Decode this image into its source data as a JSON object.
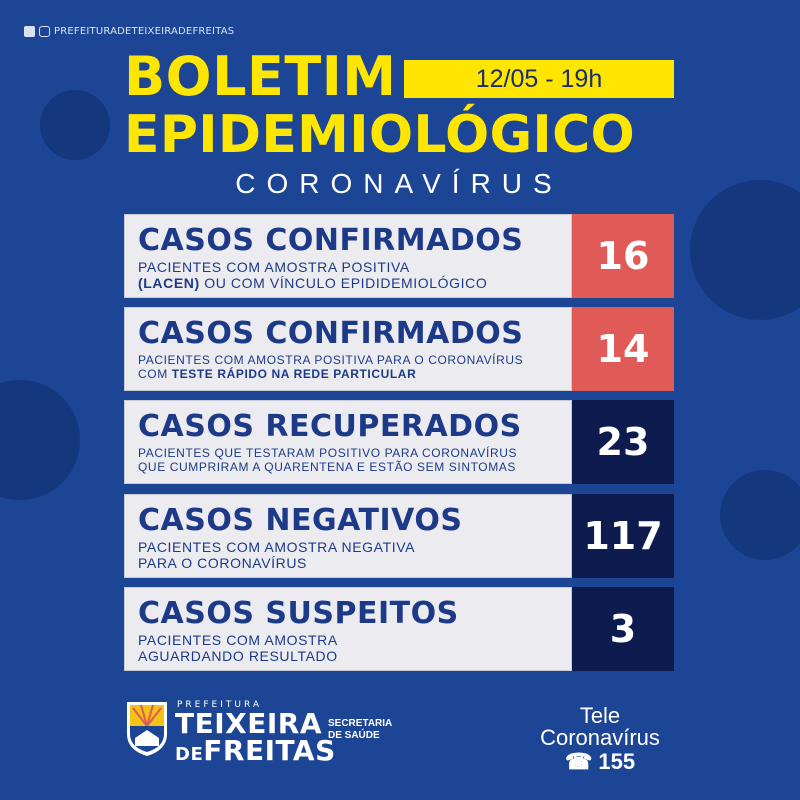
{
  "social": {
    "handle": "PREFEITURADETEIXEIRADEFREITAS",
    "icons": [
      "facebook-icon",
      "instagram-icon"
    ]
  },
  "header": {
    "title_line1": "BOLETIM",
    "title_line2": "EPIDEMIOLÓGICO",
    "date": "12/05 - 19h",
    "subtitle": "CORONAVÍRUS"
  },
  "colors": {
    "background": "#1c4596",
    "accent": "#ffe600",
    "red": "#e05a57",
    "navy": "#0e1b4f",
    "panel": "#ececf0",
    "text": "#1c3a88"
  },
  "stats": [
    {
      "title": "CASOS CONFIRMADOS",
      "line1": "PACIENTES COM AMOSTRA POSITIVA",
      "line2_bold": "(LACEN)",
      "line2_rest": " OU COM VÍNCULO EPIDIDEMIOLÓGICO",
      "value": "16"
    },
    {
      "title": "CASOS CONFIRMADOS",
      "line1": "PACIENTES COM AMOSTRA POSITIVA PARA O CORONAVÍRUS",
      "line2_pre": "COM ",
      "line2_bold": "TESTE RÁPIDO NA REDE PARTICULAR",
      "value": "14"
    },
    {
      "title": "CASOS RECUPERADOS",
      "line1": "PACIENTES QUE TESTARAM POSITIVO PARA CORONAVÍRUS",
      "line2": "QUE CUMPRIRAM A QUARENTENA E ESTÃO SEM SINTOMAS",
      "value": "23"
    },
    {
      "title": "CASOS NEGATIVOS",
      "line1": "PACIENTES COM AMOSTRA NEGATIVA",
      "line2": "PARA O CORONAVÍRUS",
      "value": "117"
    },
    {
      "title": "CASOS SUSPEITOS",
      "line1": "PACIENTES COM AMOSTRA",
      "line2": "AGUARDANDO RESULTADO",
      "value": "3"
    }
  ],
  "footer": {
    "prefeitura": "PREFEITURA",
    "city_line1": "TEIXEIRA",
    "city_de": "DE",
    "city_line2": "FREITAS",
    "secretaria_line1": "SECRETARIA",
    "secretaria_line2": "DE SAÚDE",
    "tele_line1": "Tele",
    "tele_line2": "Coronavírus",
    "tele_number": "155"
  }
}
